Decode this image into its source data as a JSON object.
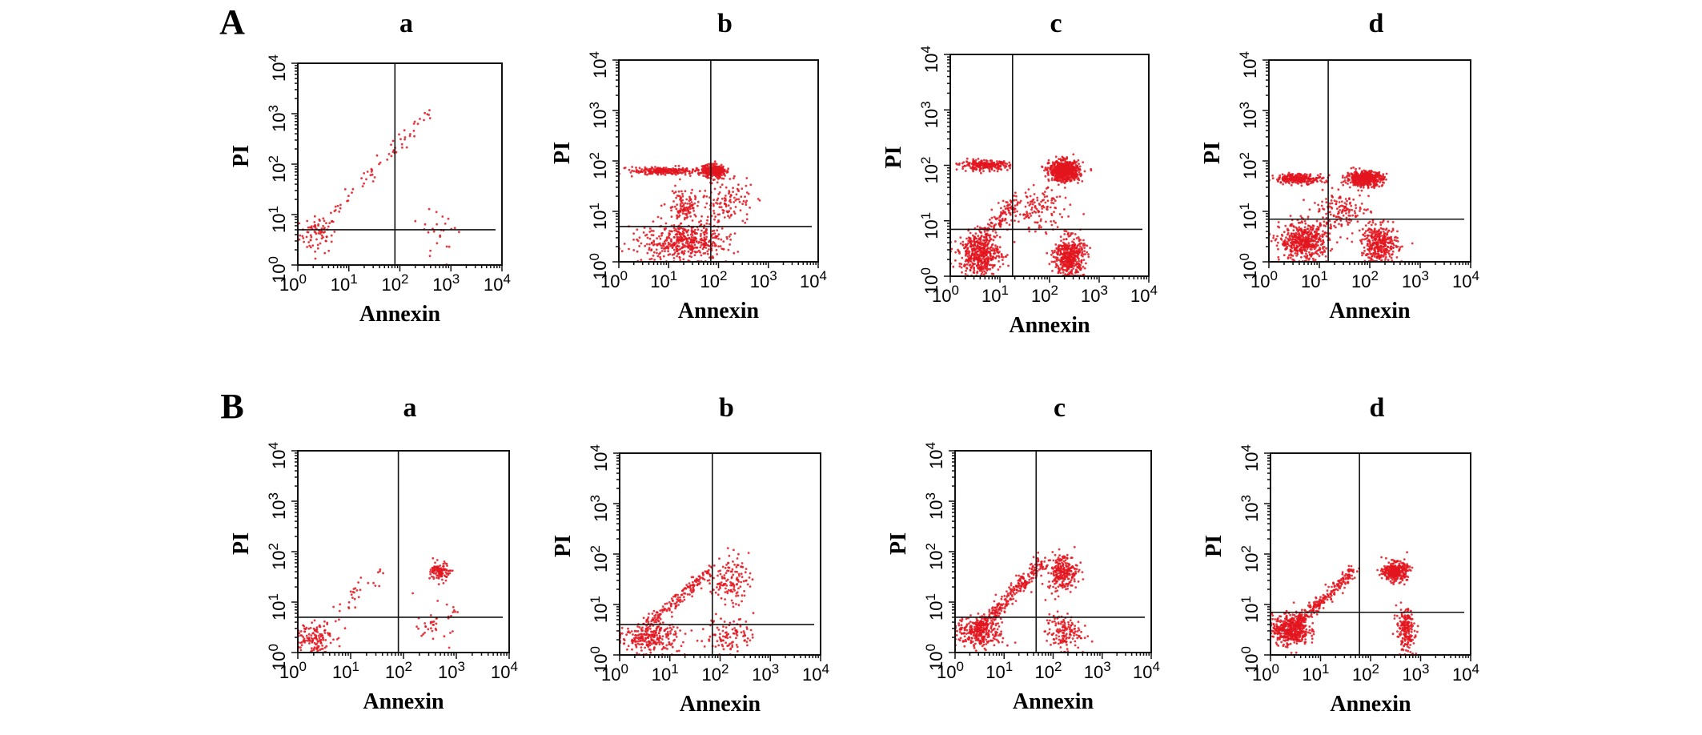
{
  "figure": {
    "rows": [
      {
        "label": "A",
        "panels": [
          "a",
          "b",
          "c",
          "d"
        ]
      },
      {
        "label": "B",
        "panels": [
          "a",
          "b",
          "c",
          "d"
        ]
      }
    ]
  },
  "chart_data": [
    {
      "type": "scatter",
      "row": "A",
      "panel": "a",
      "xlabel": "Annexin",
      "ylabel": "PI",
      "xscale": "log",
      "yscale": "log",
      "xlim": [
        1,
        10000
      ],
      "ylim": [
        1,
        10000
      ],
      "tick_base": "10",
      "tick_exponents": [
        "0",
        "1",
        "2",
        "3",
        "4"
      ],
      "point_color": "#e3151f",
      "gate": {
        "annexin": 80,
        "pi": 5
      },
      "populations": [
        {
          "log10_center": [
            0.4,
            0.6
          ],
          "log10_spread": [
            0.3,
            0.3
          ],
          "n": 70
        },
        {
          "log10_from": [
            0.3,
            0.7
          ],
          "log10_to": [
            2.6,
            3.0
          ],
          "log10_spread": 0.12,
          "n": 70
        },
        {
          "log10_center": [
            2.8,
            0.7
          ],
          "log10_spread": [
            0.4,
            0.4
          ],
          "n": 25
        }
      ]
    },
    {
      "type": "scatter",
      "row": "A",
      "panel": "b",
      "xlabel": "Annexin",
      "ylabel": "PI",
      "xscale": "log",
      "yscale": "log",
      "xlim": [
        1,
        10000
      ],
      "ylim": [
        1,
        10000
      ],
      "tick_base": "10",
      "tick_exponents": [
        "0",
        "1",
        "2",
        "3",
        "4"
      ],
      "point_color": "#e3151f",
      "gate": {
        "annexin": 70,
        "pi": 5
      },
      "populations": [
        {
          "log10_center": [
            0.9,
            1.8
          ],
          "log10_spread": [
            0.5,
            0.06
          ],
          "n": 250
        },
        {
          "log10_center": [
            1.9,
            1.8
          ],
          "log10_spread": [
            0.2,
            0.1
          ],
          "n": 350
        },
        {
          "log10_center": [
            1.3,
            0.4
          ],
          "log10_spread": [
            0.7,
            0.3
          ],
          "n": 450
        },
        {
          "log10_center": [
            1.3,
            1.1
          ],
          "log10_spread": [
            0.3,
            0.3
          ],
          "n": 120
        },
        {
          "log10_center": [
            2.2,
            1.2
          ],
          "log10_spread": [
            0.4,
            0.4
          ],
          "n": 120
        }
      ]
    },
    {
      "type": "scatter",
      "row": "A",
      "panel": "c",
      "xlabel": "Annexin",
      "ylabel": "PI",
      "xscale": "log",
      "yscale": "log",
      "xlim": [
        1,
        10000
      ],
      "ylim": [
        1,
        10000
      ],
      "tick_base": "10",
      "tick_exponents": [
        "0",
        "1",
        "2",
        "3",
        "4"
      ],
      "point_color": "#e3151f",
      "gate": {
        "annexin": 18,
        "pi": 7
      },
      "populations": [
        {
          "log10_center": [
            0.7,
            2.0
          ],
          "log10_spread": [
            0.4,
            0.07
          ],
          "n": 250
        },
        {
          "log10_center": [
            2.3,
            1.9
          ],
          "log10_spread": [
            0.25,
            0.15
          ],
          "n": 700
        },
        {
          "log10_center": [
            0.6,
            0.4
          ],
          "log10_spread": [
            0.35,
            0.3
          ],
          "n": 450
        },
        {
          "log10_center": [
            2.4,
            0.35
          ],
          "log10_spread": [
            0.25,
            0.3
          ],
          "n": 450
        },
        {
          "log10_from": [
            0.4,
            0.5
          ],
          "log10_to": [
            1.3,
            1.3
          ],
          "log10_spread": 0.15,
          "n": 150
        },
        {
          "log10_center": [
            1.8,
            1.2
          ],
          "log10_spread": [
            0.4,
            0.3
          ],
          "n": 120
        }
      ]
    },
    {
      "type": "scatter",
      "row": "A",
      "panel": "d",
      "xlabel": "Annexin",
      "ylabel": "PI",
      "xscale": "log",
      "yscale": "log",
      "xlim": [
        1,
        10000
      ],
      "ylim": [
        1,
        10000
      ],
      "tick_base": "10",
      "tick_exponents": [
        "0",
        "1",
        "2",
        "3",
        "4"
      ],
      "point_color": "#e3151f",
      "gate": {
        "annexin": 15,
        "pi": 7
      },
      "populations": [
        {
          "log10_center": [
            0.6,
            1.65
          ],
          "log10_spread": [
            0.4,
            0.08
          ],
          "n": 250
        },
        {
          "log10_center": [
            1.9,
            1.65
          ],
          "log10_spread": [
            0.3,
            0.12
          ],
          "n": 500
        },
        {
          "log10_center": [
            0.7,
            0.4
          ],
          "log10_spread": [
            0.4,
            0.3
          ],
          "n": 500
        },
        {
          "log10_center": [
            2.2,
            0.35
          ],
          "log10_spread": [
            0.3,
            0.3
          ],
          "n": 350
        },
        {
          "log10_center": [
            1.4,
            1.0
          ],
          "log10_spread": [
            0.5,
            0.3
          ],
          "n": 150
        }
      ]
    },
    {
      "type": "scatter",
      "row": "B",
      "panel": "a",
      "xlabel": "Annexin",
      "ylabel": "PI",
      "xscale": "log",
      "yscale": "log",
      "xlim": [
        1,
        10000
      ],
      "ylim": [
        1,
        10000
      ],
      "tick_base": "10",
      "tick_exponents": [
        "0",
        "1",
        "2",
        "3",
        "4"
      ],
      "point_color": "#e3151f",
      "gate": {
        "annexin": 80,
        "pi": 5
      },
      "populations": [
        {
          "log10_center": [
            0.3,
            0.3
          ],
          "log10_spread": [
            0.3,
            0.25
          ],
          "n": 120
        },
        {
          "log10_from": [
            0.3,
            0.4
          ],
          "log10_to": [
            1.6,
            1.6
          ],
          "log10_spread": 0.15,
          "n": 40
        },
        {
          "log10_center": [
            2.7,
            1.6
          ],
          "log10_spread": [
            0.15,
            0.15
          ],
          "n": 110
        },
        {
          "log10_center": [
            2.6,
            0.6
          ],
          "log10_spread": [
            0.3,
            0.3
          ],
          "n": 40
        }
      ]
    },
    {
      "type": "scatter",
      "row": "B",
      "panel": "b",
      "xlabel": "Annexin",
      "ylabel": "PI",
      "xscale": "log",
      "yscale": "log",
      "xlim": [
        1,
        10000
      ],
      "ylim": [
        1,
        10000
      ],
      "tick_base": "10",
      "tick_exponents": [
        "0",
        "1",
        "2",
        "3",
        "4"
      ],
      "point_color": "#e3151f",
      "gate": {
        "annexin": 70,
        "pi": 4
      },
      "populations": [
        {
          "log10_center": [
            0.6,
            0.35
          ],
          "log10_spread": [
            0.5,
            0.25
          ],
          "n": 250
        },
        {
          "log10_from": [
            0.6,
            0.6
          ],
          "log10_to": [
            1.8,
            1.7
          ],
          "log10_spread": 0.12,
          "n": 160
        },
        {
          "log10_center": [
            2.2,
            1.5
          ],
          "log10_spread": [
            0.3,
            0.4
          ],
          "n": 130
        },
        {
          "log10_center": [
            2.2,
            0.4
          ],
          "log10_spread": [
            0.4,
            0.3
          ],
          "n": 100
        }
      ]
    },
    {
      "type": "scatter",
      "row": "B",
      "panel": "c",
      "xlabel": "Annexin",
      "ylabel": "PI",
      "xscale": "log",
      "yscale": "log",
      "xlim": [
        1,
        10000
      ],
      "ylim": [
        1,
        10000
      ],
      "tick_base": "10",
      "tick_exponents": [
        "0",
        "1",
        "2",
        "3",
        "4"
      ],
      "point_color": "#e3151f",
      "gate": {
        "annexin": 45,
        "pi": 5
      },
      "populations": [
        {
          "log10_center": [
            0.5,
            0.4
          ],
          "log10_spread": [
            0.4,
            0.25
          ],
          "n": 280
        },
        {
          "log10_from": [
            0.4,
            0.4
          ],
          "log10_to": [
            1.8,
            1.8
          ],
          "log10_spread": 0.12,
          "n": 300
        },
        {
          "log10_center": [
            2.2,
            1.6
          ],
          "log10_spread": [
            0.25,
            0.3
          ],
          "n": 250
        },
        {
          "log10_center": [
            2.2,
            0.4
          ],
          "log10_spread": [
            0.3,
            0.3
          ],
          "n": 150
        }
      ]
    },
    {
      "type": "scatter",
      "row": "B",
      "panel": "d",
      "xlabel": "Annexin",
      "ylabel": "PI",
      "xscale": "log",
      "yscale": "log",
      "xlim": [
        1,
        10000
      ],
      "ylim": [
        1,
        10000
      ],
      "tick_base": "10",
      "tick_exponents": [
        "0",
        "1",
        "2",
        "3",
        "4"
      ],
      "point_color": "#e3151f",
      "gate": {
        "annexin": 60,
        "pi": 7
      },
      "populations": [
        {
          "log10_center": [
            0.4,
            0.5
          ],
          "log10_spread": [
            0.3,
            0.25
          ],
          "n": 450
        },
        {
          "log10_from": [
            0.5,
            0.6
          ],
          "log10_to": [
            1.7,
            1.7
          ],
          "log10_spread": 0.1,
          "n": 250
        },
        {
          "log10_center": [
            2.5,
            1.65
          ],
          "log10_spread": [
            0.2,
            0.15
          ],
          "n": 350
        },
        {
          "log10_center": [
            2.7,
            0.5
          ],
          "log10_spread": [
            0.15,
            0.35
          ],
          "n": 200
        }
      ]
    }
  ]
}
